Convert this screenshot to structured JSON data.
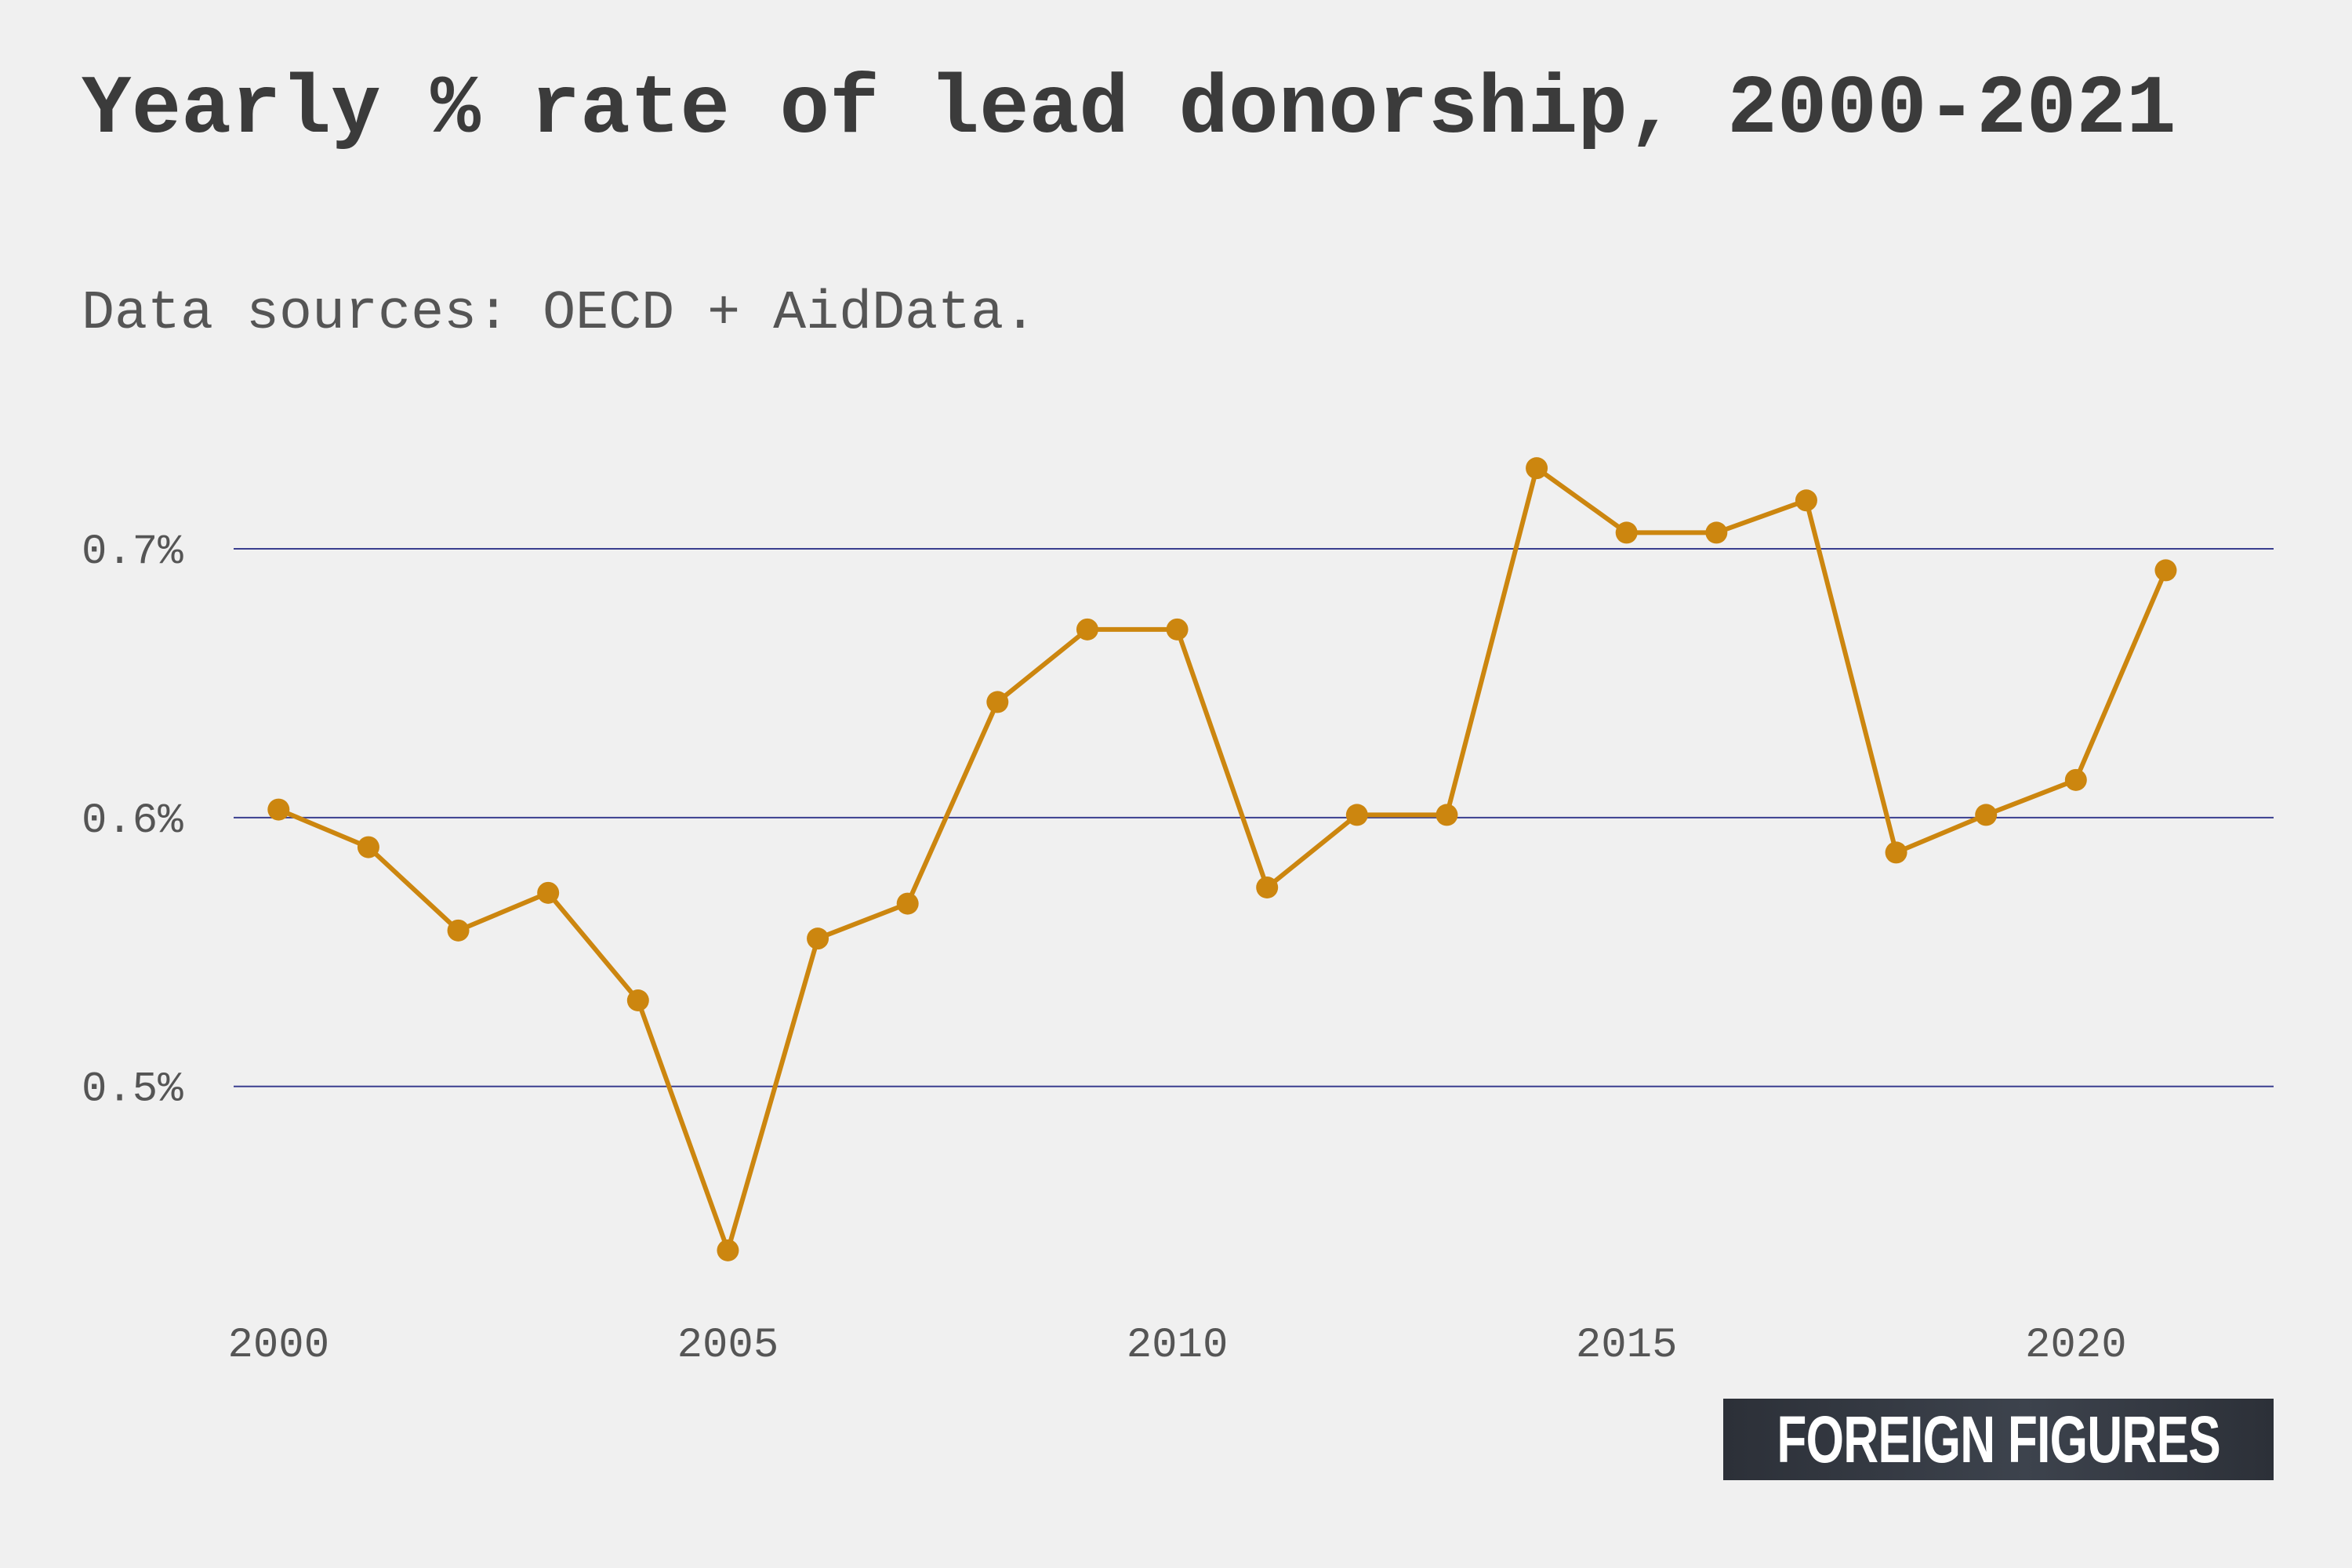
{
  "header": {
    "title": "Yearly % rate of lead donorship, 2000-2021",
    "subtitle": "Data sources: OECD + AidData."
  },
  "brand": {
    "label": "FOREIGN FIGURES"
  },
  "colors": {
    "background": "#f0f0f0",
    "line": "#cc860f",
    "gridline": "#3a3f8f",
    "text": "#3b3b3b"
  },
  "chart_data": {
    "type": "line",
    "title": "Yearly % rate of lead donorship, 2000-2021",
    "subtitle": "Data sources: OECD + AidData.",
    "xlabel": "",
    "ylabel": "",
    "x": [
      2000,
      2001,
      2002,
      2003,
      2004,
      2005,
      2006,
      2007,
      2008,
      2009,
      2010,
      2011,
      2012,
      2013,
      2014,
      2015,
      2016,
      2017,
      2018,
      2019,
      2020,
      2021
    ],
    "series": [
      {
        "values": [
          0.603,
          0.589,
          0.558,
          0.572,
          0.532,
          0.439,
          0.555,
          0.568,
          0.643,
          0.67,
          0.67,
          0.574,
          0.601,
          0.601,
          0.73,
          0.706,
          0.706,
          0.718,
          0.587,
          0.601,
          0.614,
          0.692
        ]
      }
    ],
    "xlim": [
      1999.5,
      2022.2
    ],
    "ylim": [
      0.42,
      0.77
    ],
    "x_ticks": [
      2000,
      2005,
      2010,
      2015,
      2020
    ],
    "x_tick_labels": [
      "2000",
      "2005",
      "2010",
      "2015",
      "2020"
    ],
    "y_ticks": [
      0.5,
      0.6,
      0.7
    ],
    "y_tick_labels": [
      "0.5%",
      "0.6%",
      "0.7%"
    ],
    "grid": "horizontal",
    "legend": "none",
    "markers": true
  }
}
